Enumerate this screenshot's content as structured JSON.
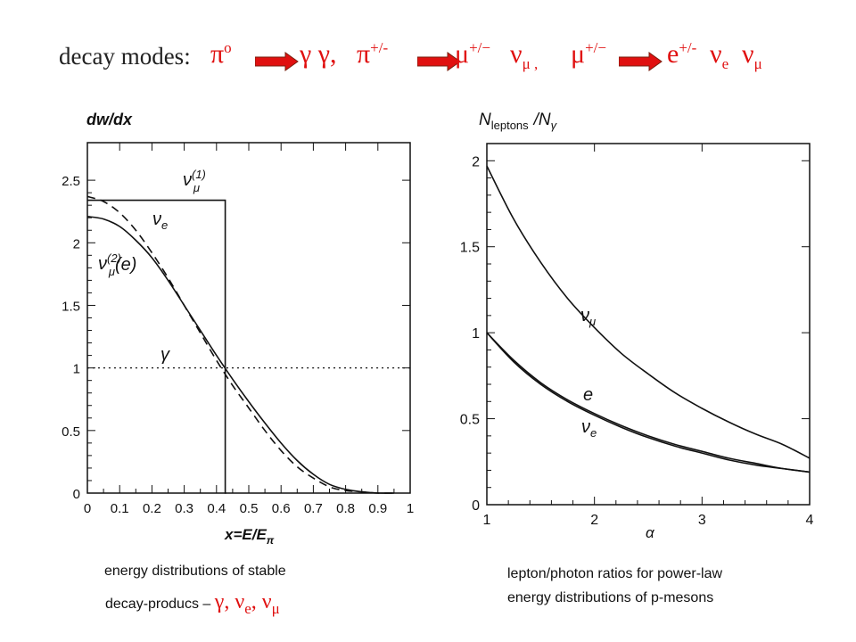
{
  "header": {
    "label": "decay modes:",
    "pi0": "π",
    "pi0_sup": "o",
    "gammas": "γ γ,",
    "pi_pm": "π",
    "pi_pm_sup": "+/-",
    "mu_pm_1": "μ",
    "mu_pm_1_sup": "+/−",
    "nu_mu_1": "ν",
    "nu_mu_1_sub": "μ ,",
    "mu_pm_2": "μ",
    "mu_pm_2_sup": "+/−",
    "e_pm": "e",
    "e_pm_sup": "+/-",
    "nu_e": "ν",
    "nu_e_sub": "e",
    "nu_mu_2": "ν",
    "nu_mu_2_sub": "μ",
    "arrow_color": "#e01010"
  },
  "captions": {
    "left_line1": "energy distributions of stable",
    "left_line2": "decay-producs –",
    "left_particles": "γ,  ν",
    "left_e_sub": "e",
    "left_comma": ",  ν",
    "left_mu_sub": "μ",
    "right_line1": "lepton/photon ratios for power-law",
    "right_line2": "energy distributions of p-mesons"
  },
  "chart_data": [
    {
      "type": "line",
      "ylabel": "dw/dx",
      "xlabel": "x=E/E",
      "xlabel_sub": "π",
      "xlim": [
        0,
        1
      ],
      "ylim": [
        0,
        2.8
      ],
      "xticks": [
        "0",
        "0.1",
        "0.2",
        "0.3",
        "0.4",
        "0.5",
        "0.6",
        "0.7",
        "0.8",
        "0.9",
        "1"
      ],
      "yticks": [
        "0",
        "0.5",
        "1",
        "1.5",
        "2",
        "2.5"
      ],
      "series": [
        {
          "name": "ν_μ^(1)",
          "style": "solid",
          "x": [
            0,
            0.427,
            0.427,
            0.43
          ],
          "y": [
            2.34,
            2.34,
            0,
            0
          ]
        },
        {
          "name": "ν_e",
          "style": "dashed",
          "x": [
            0,
            0.05,
            0.1,
            0.15,
            0.2,
            0.25,
            0.3,
            0.35,
            0.4,
            0.45,
            0.5,
            0.55,
            0.6,
            0.65,
            0.7,
            0.75,
            0.8,
            0.85,
            0.9,
            0.95
          ],
          "y": [
            2.37,
            2.33,
            2.24,
            2.1,
            1.92,
            1.72,
            1.5,
            1.28,
            1.06,
            0.86,
            0.68,
            0.5,
            0.34,
            0.21,
            0.12,
            0.05,
            0.02,
            0.01,
            0.0,
            0.0
          ]
        },
        {
          "name": "ν_μ^(2)(e)",
          "style": "solid",
          "x": [
            0,
            0.05,
            0.1,
            0.15,
            0.2,
            0.25,
            0.3,
            0.35,
            0.4,
            0.45,
            0.5,
            0.55,
            0.6,
            0.65,
            0.7,
            0.75,
            0.8,
            0.85,
            0.9,
            0.95
          ],
          "y": [
            2.21,
            2.19,
            2.13,
            2.02,
            1.88,
            1.7,
            1.5,
            1.3,
            1.1,
            0.91,
            0.73,
            0.56,
            0.4,
            0.26,
            0.15,
            0.07,
            0.03,
            0.01,
            0.0,
            0.0
          ]
        },
        {
          "name": "γ",
          "style": "dotted",
          "x": [
            0,
            1
          ],
          "y": [
            1,
            1
          ]
        }
      ],
      "annotations": [
        {
          "text": "ν",
          "sub": "μ",
          "sup": "(1)"
        },
        {
          "text": "ν",
          "sub": "e"
        },
        {
          "text": "ν",
          "sub": "μ",
          "sup": "(2)",
          "tail": "(e)"
        },
        {
          "text": "γ"
        }
      ]
    },
    {
      "type": "line",
      "ylabel": "N",
      "ylabel_sub": "leptons",
      "ylabel_tail": "/N",
      "ylabel_tail_sub": "γ",
      "xlabel": "α",
      "xlim": [
        1,
        4
      ],
      "ylim": [
        0,
        2.1
      ],
      "xticks": [
        "1",
        "2",
        "3",
        "4"
      ],
      "yticks": [
        "0",
        "0.5",
        "1",
        "1.5",
        "2"
      ],
      "series": [
        {
          "name": "ν_μ",
          "style": "solid",
          "x": [
            1,
            1.25,
            1.5,
            1.75,
            2,
            2.25,
            2.5,
            2.75,
            3,
            3.25,
            3.5,
            3.75,
            4
          ],
          "y": [
            1.97,
            1.66,
            1.41,
            1.2,
            1.03,
            0.88,
            0.76,
            0.65,
            0.56,
            0.48,
            0.41,
            0.35,
            0.27
          ]
        },
        {
          "name": "e",
          "style": "solid",
          "x": [
            1,
            1.25,
            1.5,
            1.75,
            2,
            2.25,
            2.5,
            2.75,
            3,
            3.25,
            3.5,
            3.75,
            4
          ],
          "y": [
            1.0,
            0.84,
            0.71,
            0.61,
            0.53,
            0.46,
            0.4,
            0.35,
            0.31,
            0.27,
            0.24,
            0.21,
            0.19
          ]
        },
        {
          "name": "ν_e",
          "style": "solid",
          "x": [
            1,
            1.25,
            1.5,
            1.75,
            2,
            2.25,
            2.5,
            2.75,
            3,
            3.25,
            3.5,
            3.75,
            4
          ],
          "y": [
            1.0,
            0.83,
            0.7,
            0.6,
            0.52,
            0.45,
            0.39,
            0.34,
            0.3,
            0.26,
            0.23,
            0.21,
            0.19
          ]
        }
      ],
      "annotations": [
        {
          "text": "ν",
          "sub": "μ"
        },
        {
          "text": "e"
        },
        {
          "text": "ν",
          "sub": "e"
        }
      ]
    }
  ]
}
